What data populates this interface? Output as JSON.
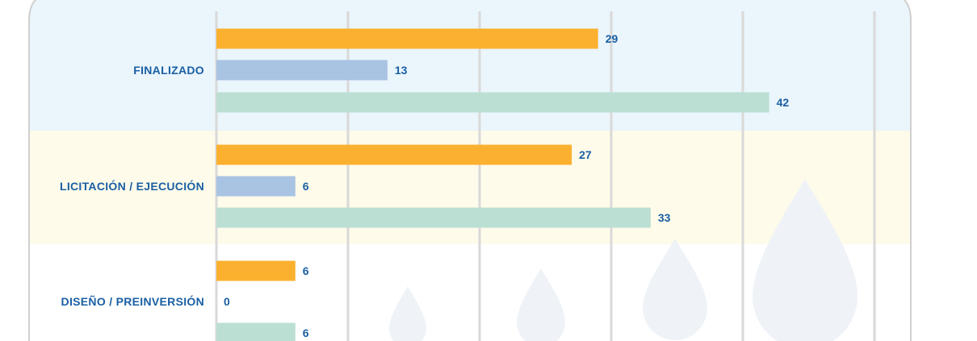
{
  "chart_data": {
    "type": "bar",
    "orientation": "horizontal",
    "categories": [
      "FINALIZADO",
      "LICITACIÓN / EJECUCIÓN",
      "DISEÑO / PREINVERSIÓN"
    ],
    "series": [
      {
        "values": [
          29,
          27,
          6
        ],
        "color": "#FBB12F"
      },
      {
        "values": [
          13,
          6,
          0
        ],
        "color": "#A9C3E3"
      },
      {
        "values": [
          42,
          33,
          6
        ],
        "color": "#BCDFD3"
      }
    ],
    "data_labels": true,
    "xlim": [
      0,
      50
    ],
    "grid": true,
    "legend": "none"
  },
  "colors": {
    "label_text": "#1a5fa3",
    "band_1": "#EAF5FC",
    "band_2": "#FEFBEA",
    "band_3": "#FFFFFF",
    "gridline": "#D9D9D9",
    "frame": "#D0D0D0",
    "drop": "#EFF3F8"
  }
}
